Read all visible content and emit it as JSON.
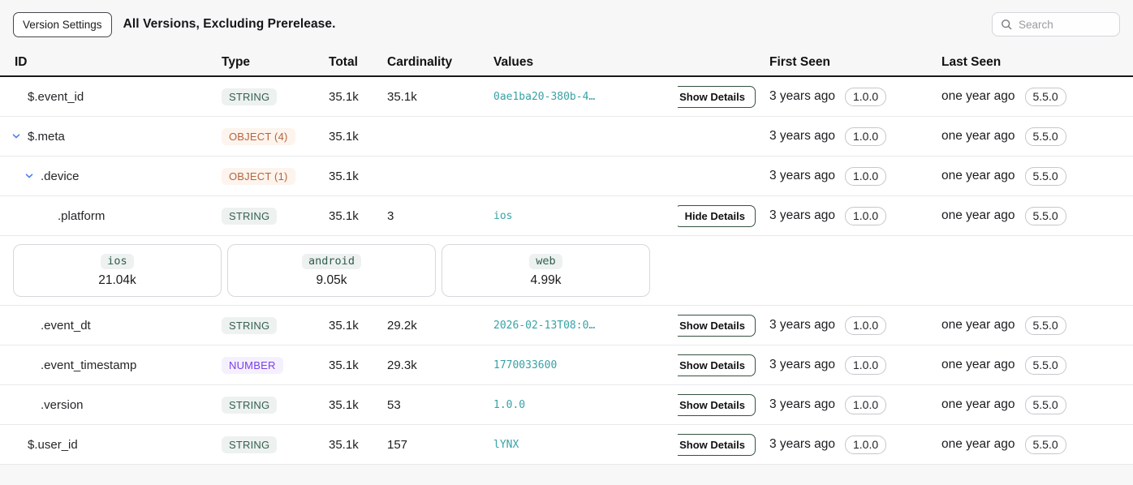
{
  "toolbar": {
    "version_settings_label": "Version Settings",
    "title": "All Versions, Excluding Prerelease.",
    "search_placeholder": "Search"
  },
  "columns": {
    "id": "ID",
    "type": "Type",
    "total": "Total",
    "cardinality": "Cardinality",
    "values": "Values",
    "first_seen": "First Seen",
    "last_seen": "Last Seen"
  },
  "colors": {
    "value_teal": "#38a2a6",
    "string_badge_text": "#35604f",
    "string_badge_bg": "#edf1ef",
    "object_badge_text": "#b4643e",
    "object_badge_bg": "#fdf4ed",
    "number_badge_text": "#7940e9",
    "number_badge_bg": "#f4f0fd",
    "chevron_blue": "#4c7cf5",
    "details_button_border": "#35523f"
  },
  "rows": [
    {
      "id": "$.event_id",
      "level": 0,
      "chevron": false,
      "type_label": "STRING",
      "type_kind": "string",
      "total": "35.1k",
      "cardinality": "35.1k",
      "value": "0ae1ba20-380b-4…",
      "details_label": "Show Details",
      "first_seen": "3 years ago",
      "first_seen_version": "1.0.0",
      "last_seen": "one year ago",
      "last_seen_version": "5.5.0"
    },
    {
      "id": "$.meta",
      "level": 0,
      "chevron": true,
      "type_label": "OBJECT (4)",
      "type_kind": "object",
      "total": "35.1k",
      "cardinality": "",
      "value": "",
      "details_label": null,
      "first_seen": "3 years ago",
      "first_seen_version": "1.0.0",
      "last_seen": "one year ago",
      "last_seen_version": "5.5.0"
    },
    {
      "id": ".device",
      "level": 1,
      "chevron": true,
      "type_label": "OBJECT (1)",
      "type_kind": "object",
      "total": "35.1k",
      "cardinality": "",
      "value": "",
      "details_label": null,
      "first_seen": "3 years ago",
      "first_seen_version": "1.0.0",
      "last_seen": "one year ago",
      "last_seen_version": "5.5.0"
    },
    {
      "id": ".platform",
      "level": 2,
      "chevron": false,
      "type_label": "STRING",
      "type_kind": "string",
      "total": "35.1k",
      "cardinality": "3",
      "value": "ios",
      "details_label": "Hide Details",
      "first_seen": "3 years ago",
      "first_seen_version": "1.0.0",
      "last_seen": "one year ago",
      "last_seen_version": "5.5.0"
    },
    {
      "id": ".event_dt",
      "level": 1,
      "chevron": false,
      "type_label": "STRING",
      "type_kind": "string",
      "total": "35.1k",
      "cardinality": "29.2k",
      "value": "2026-02-13T08:0…",
      "details_label": "Show Details",
      "first_seen": "3 years ago",
      "first_seen_version": "1.0.0",
      "last_seen": "one year ago",
      "last_seen_version": "5.5.0"
    },
    {
      "id": ".event_timestamp",
      "level": 1,
      "chevron": false,
      "type_label": "NUMBER",
      "type_kind": "number",
      "total": "35.1k",
      "cardinality": "29.3k",
      "value": "1770033600",
      "details_label": "Show Details",
      "first_seen": "3 years ago",
      "first_seen_version": "1.0.0",
      "last_seen": "one year ago",
      "last_seen_version": "5.5.0"
    },
    {
      "id": ".version",
      "level": 1,
      "chevron": false,
      "type_label": "STRING",
      "type_kind": "string",
      "total": "35.1k",
      "cardinality": "53",
      "value": "1.0.0",
      "details_label": "Show Details",
      "first_seen": "3 years ago",
      "first_seen_version": "1.0.0",
      "last_seen": "one year ago",
      "last_seen_version": "5.5.0"
    },
    {
      "id": "$.user_id",
      "level": 0,
      "chevron": false,
      "type_label": "STRING",
      "type_kind": "string",
      "total": "35.1k",
      "cardinality": "157",
      "value": "lYNX",
      "details_label": "Show Details",
      "first_seen": "3 years ago",
      "first_seen_version": "1.0.0",
      "last_seen": "one year ago",
      "last_seen_version": "5.5.0"
    }
  ],
  "expanded_details": {
    "for_row": ".platform",
    "cards": [
      {
        "label": "ios",
        "count": "21.04k"
      },
      {
        "label": "android",
        "count": "9.05k"
      },
      {
        "label": "web",
        "count": "4.99k"
      }
    ]
  }
}
